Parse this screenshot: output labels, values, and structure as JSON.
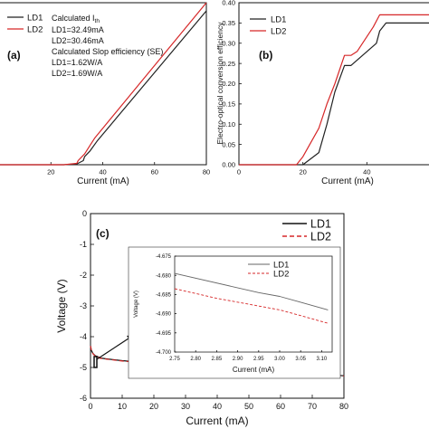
{
  "chart_data": [
    {
      "panel": "a",
      "type": "line",
      "panel_label": "(a)",
      "xlabel": "Current (mA)",
      "ylabel": "",
      "xlim": [
        0,
        80
      ],
      "ylim": [
        0,
        60
      ],
      "xticks": [
        "20",
        "40",
        "60",
        "80"
      ],
      "legend_position": "top-left",
      "annotations": [
        {
          "base": "Calculated I",
          "sub": "th"
        },
        {
          "base": "LD1=32.49mA",
          "sub": ""
        },
        {
          "base": "LD2=30.46mA",
          "sub": ""
        },
        {
          "base": "Calculated Slop efficiency (SE)",
          "sub": ""
        },
        {
          "base": "LD1=1.62W/A",
          "sub": ""
        },
        {
          "base": "LD2=1.69W/A",
          "sub": ""
        }
      ],
      "series": [
        {
          "name": "LD1",
          "color": "#222222",
          "dash": "",
          "x": [
            0,
            25,
            30,
            32.5,
            33,
            35,
            38,
            80
          ],
          "y": [
            0,
            0,
            0.3,
            1.5,
            3,
            5,
            9,
            57
          ]
        },
        {
          "name": "LD2",
          "color": "#d62728",
          "dash": "",
          "x": [
            0,
            25,
            30,
            30.5,
            33,
            35,
            37,
            80
          ],
          "y": [
            0,
            0,
            0.5,
            1.5,
            4,
            7,
            10,
            60
          ]
        }
      ]
    },
    {
      "panel": "b",
      "type": "line",
      "panel_label": "(b)",
      "xlabel": "Current (mA)",
      "ylabel": "Electro-optical conversion efficiency",
      "xlim": [
        0,
        60
      ],
      "ylim": [
        0,
        0.4
      ],
      "xticks": [
        "0",
        "20",
        "40"
      ],
      "yticks": [
        "0.00",
        "0.05",
        "0.10",
        "0.15",
        "0.20",
        "0.25",
        "0.30",
        "0.35",
        "0.40"
      ],
      "legend_position": "top-left",
      "series": [
        {
          "name": "LD1",
          "color": "#222222",
          "dash": "",
          "x": [
            0,
            20,
            25,
            27.5,
            30,
            33,
            35,
            43,
            44,
            46,
            60
          ],
          "y": [
            0,
            0,
            0.03,
            0.1,
            0.18,
            0.245,
            0.245,
            0.3,
            0.33,
            0.35,
            0.35
          ]
        },
        {
          "name": "LD2",
          "color": "#d62728",
          "dash": "",
          "x": [
            0,
            18,
            20,
            25,
            27.5,
            30,
            33,
            35,
            37,
            42,
            44,
            60
          ],
          "y": [
            0,
            0,
            0.02,
            0.09,
            0.15,
            0.2,
            0.27,
            0.27,
            0.28,
            0.34,
            0.37,
            0.37
          ]
        }
      ]
    },
    {
      "panel": "c",
      "type": "line",
      "panel_label": "(c)",
      "xlabel": "Current (mA)",
      "ylabel": "Voltage (V)",
      "xlim": [
        0,
        80
      ],
      "ylim": [
        -6,
        0
      ],
      "xticks": [
        "0",
        "10",
        "20",
        "30",
        "40",
        "50",
        "60",
        "70",
        "80"
      ],
      "yticks": [
        "0",
        "-1",
        "-2",
        "-3",
        "-4",
        "-5",
        "-6"
      ],
      "legend_position": "top-right",
      "series": [
        {
          "name": "LD1",
          "color": "#111111",
          "dash": "",
          "x": [
            0,
            0.3,
            0.8,
            1.5,
            2.5,
            3,
            5,
            10,
            20,
            30,
            40,
            50,
            60,
            70,
            80
          ],
          "y": [
            -4.3,
            -4.45,
            -4.55,
            -4.62,
            -4.66,
            -4.69,
            -4.72,
            -4.78,
            -4.86,
            -4.93,
            -5.0,
            -5.07,
            -5.13,
            -5.2,
            -5.27
          ]
        },
        {
          "name": "LD2",
          "color": "#d62728",
          "dash": "5,3",
          "x": [
            0,
            0.3,
            0.8,
            1.5,
            2.5,
            3,
            5,
            10,
            20,
            30,
            40,
            50,
            60,
            70,
            80
          ],
          "y": [
            -4.3,
            -4.45,
            -4.56,
            -4.63,
            -4.67,
            -4.7,
            -4.73,
            -4.79,
            -4.87,
            -4.94,
            -5.01,
            -5.08,
            -5.14,
            -5.21,
            -5.28
          ]
        }
      ]
    },
    {
      "panel": "c-inset",
      "type": "line",
      "xlabel": "Current (mA)",
      "ylabel": "Voltage (V)",
      "xlim": [
        2.75,
        3.125
      ],
      "ylim": [
        -4.7,
        -4.675
      ],
      "xticks": [
        "2.75",
        "2.80",
        "2.85",
        "2.90",
        "2.95",
        "3.00",
        "3.05",
        "3.10"
      ],
      "yticks": [
        "-4.675",
        "-4.680",
        "-4.685",
        "-4.690",
        "-4.695",
        "-4.700"
      ],
      "legend_position": "top-right",
      "series": [
        {
          "name": "LD1",
          "color": "#666666",
          "dash": "",
          "x": [
            2.75,
            2.95,
            3.0,
            3.05,
            3.115
          ],
          "y": [
            -4.6795,
            -4.6845,
            -4.6855,
            -4.687,
            -4.689
          ]
        },
        {
          "name": "LD2",
          "color": "#d62728",
          "dash": "3,2",
          "x": [
            2.75,
            2.85,
            2.95,
            3.0,
            3.05,
            3.115
          ],
          "y": [
            -4.6835,
            -4.686,
            -4.688,
            -4.689,
            -4.6905,
            -4.6925
          ]
        }
      ]
    }
  ]
}
